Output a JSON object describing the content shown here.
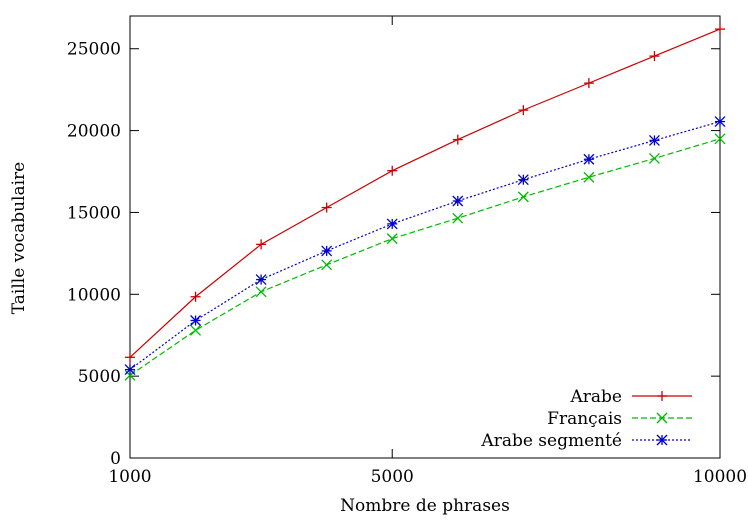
{
  "chart_data": {
    "type": "line",
    "title": "",
    "xlabel": "Nombre de phrases",
    "ylabel": "Taille vocabulaire",
    "xlim": [
      1000,
      10000
    ],
    "ylim": [
      0,
      27000
    ],
    "x_ticks": [
      1000,
      5000,
      10000
    ],
    "y_ticks": [
      0,
      5000,
      10000,
      15000,
      20000,
      25000
    ],
    "grid": false,
    "legend_position": "bottom-right",
    "x": [
      1000,
      2000,
      3000,
      4000,
      5000,
      6000,
      7000,
      8000,
      9000,
      10000
    ],
    "series": [
      {
        "name": "Arabe",
        "color": "#cc0000",
        "marker": "plus",
        "dash": "solid",
        "values": [
          6150,
          9850,
          13050,
          15300,
          17550,
          19450,
          21250,
          22900,
          24550,
          26200
        ]
      },
      {
        "name": "Français",
        "color": "#00bb00",
        "marker": "x",
        "dash": "dashed",
        "values": [
          5050,
          7800,
          10150,
          11800,
          13400,
          14650,
          15950,
          17150,
          18300,
          19500
        ]
      },
      {
        "name": "Arabe segmenté",
        "color": "#0000cc",
        "marker": "star",
        "dash": "dotted",
        "values": [
          5400,
          8400,
          10900,
          12650,
          14300,
          15700,
          17000,
          18250,
          19400,
          20550
        ]
      }
    ]
  }
}
